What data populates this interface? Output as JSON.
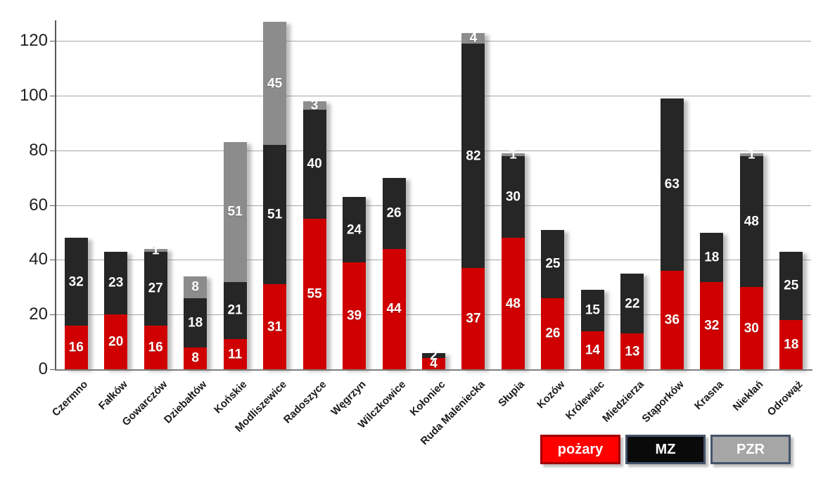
{
  "chart_data": {
    "type": "bar",
    "stacked": true,
    "title": "",
    "xlabel": "",
    "ylabel": "",
    "categories": [
      "Czermno",
      "Fałków",
      "Gowarczów",
      "Dziebałtów",
      "Końskie",
      "Modliszewice",
      "Radoszyce",
      "Węgrzyn",
      "Wilczkowice",
      "Kołoniec",
      "Ruda Maleniecka",
      "Słupia",
      "Kozów",
      "Królewiec",
      "Miedzierza",
      "Stąporków",
      "Krasna",
      "Niekłań",
      "Odrowąż"
    ],
    "series": [
      {
        "name": "pożary",
        "color": "#d00000",
        "values": [
          16,
          20,
          16,
          8,
          11,
          31,
          55,
          39,
          44,
          4,
          37,
          48,
          26,
          14,
          13,
          36,
          32,
          30,
          18
        ]
      },
      {
        "name": "MZ",
        "color": "#262626",
        "values": [
          32,
          23,
          27,
          18,
          21,
          51,
          40,
          24,
          26,
          2,
          82,
          30,
          25,
          15,
          22,
          63,
          18,
          48,
          25
        ]
      },
      {
        "name": "PZR",
        "color": "#8c8c8c",
        "values": [
          0,
          0,
          1,
          8,
          51,
          45,
          3,
          0,
          0,
          0,
          4,
          1,
          0,
          0,
          0,
          0,
          0,
          1,
          0
        ]
      }
    ],
    "ylim": [
      0,
      130
    ],
    "yticks": [
      0,
      20,
      40,
      60,
      80,
      100,
      120
    ],
    "grid": true,
    "legend_position": "bottom-right"
  },
  "legend": {
    "items": [
      {
        "label": "pożary",
        "fill": "#fe0000",
        "border": "#a00000"
      },
      {
        "label": "MZ",
        "fill": "#0a0a0a",
        "border": "#44546a"
      },
      {
        "label": "PZR",
        "fill": "#a6a6a6",
        "border": "#44546a"
      }
    ]
  },
  "style_colors": {
    "gridline": "#a6a6a6",
    "axis_line": "#595959",
    "baseline": "#7f7f7f",
    "tick_text": "#1f1f1f",
    "bar_label_text": "#ffffff"
  }
}
